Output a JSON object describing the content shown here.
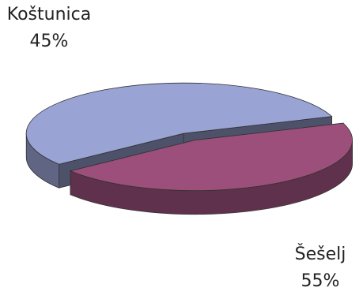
{
  "chart_data": {
    "type": "pie",
    "style": "3d-exploded",
    "title": "",
    "slices": [
      {
        "name": "Koštunica",
        "value": 45,
        "label": "45%",
        "color": "#9b4f7a"
      },
      {
        "name": "Šešelj",
        "value": 55,
        "label": "55%",
        "color": "#99a3d4"
      }
    ],
    "legend": "none"
  }
}
